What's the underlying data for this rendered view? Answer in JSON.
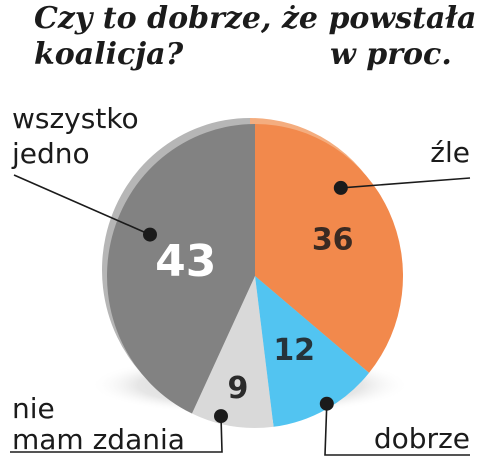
{
  "title": {
    "line1": "Czy to dobrze, że powstała",
    "line2": "koalicja?",
    "unit": "w proc."
  },
  "chart_data": {
    "type": "pie",
    "title": "Czy to dobrze, że powstała koalicja?",
    "unit": "w proc.",
    "labels": [
      "źle",
      "dobrze",
      "nie mam zdania",
      "wszystko jedno"
    ],
    "values": [
      36,
      12,
      9,
      43
    ],
    "colors": [
      "#f2894c",
      "#52c4f1",
      "#d9d9d9",
      "#828282"
    ],
    "shade_colors": [
      "#f4ad7f",
      "#9fdcf3",
      "#e7e7e7",
      "#b6b6b6"
    ],
    "legend": "callout labels"
  }
}
